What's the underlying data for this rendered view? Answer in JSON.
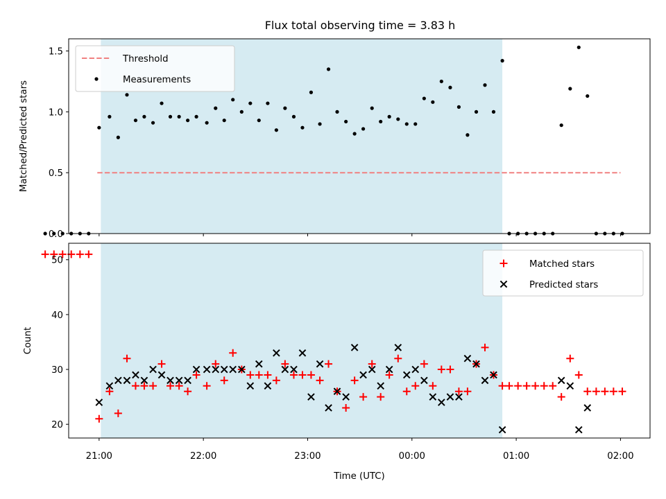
{
  "title": "Flux total observing time = 3.83 h",
  "colors": {
    "shade": "#add8e6",
    "threshold": "#f08080",
    "measurement": "#000000",
    "matched": "#ff0000",
    "predicted": "#000000"
  },
  "chart_data": [
    {
      "type": "scatter",
      "panel": "top",
      "ylabel": "Matched/Predicted stars",
      "xlabel": "",
      "ylim": [
        0,
        1.6
      ],
      "yticks": [
        0.0,
        0.5,
        1.0,
        1.5
      ],
      "ytick_labels": [
        "0.0",
        "0.5",
        "1.0",
        "1.5"
      ],
      "xlim_hours": [
        20.7083,
        26.2833
      ],
      "shaded_span_hours": [
        21.0167,
        24.8667
      ],
      "legend": {
        "position": "upper left",
        "entries": [
          "Threshold",
          "Measurements"
        ]
      },
      "threshold": {
        "name": "Threshold",
        "y": 0.5,
        "x_from": 20.983,
        "x_to": 26.0
      },
      "series": [
        {
          "name": "Measurements",
          "x": [
            20.483,
            20.567,
            20.65,
            20.733,
            20.817,
            20.9,
            21.0,
            21.1,
            21.183,
            21.267,
            21.35,
            21.433,
            21.517,
            21.6,
            21.683,
            21.767,
            21.85,
            21.933,
            22.033,
            22.117,
            22.2,
            22.283,
            22.367,
            22.45,
            22.533,
            22.617,
            22.7,
            22.783,
            22.867,
            22.95,
            23.033,
            23.117,
            23.2,
            23.283,
            23.367,
            23.45,
            23.533,
            23.617,
            23.7,
            23.783,
            23.867,
            23.95,
            24.033,
            24.117,
            24.2,
            24.283,
            24.367,
            24.45,
            24.533,
            24.617,
            24.7,
            24.783,
            24.867,
            24.933,
            25.017,
            25.1,
            25.183,
            25.267,
            25.35,
            25.433,
            25.517,
            25.6,
            25.683,
            25.767,
            25.85,
            25.933,
            26.017
          ],
          "y": [
            0,
            0,
            0,
            0,
            0,
            0,
            0.87,
            0.96,
            0.79,
            1.14,
            0.93,
            0.96,
            0.91,
            1.07,
            0.96,
            0.96,
            0.93,
            0.96,
            0.91,
            1.03,
            0.93,
            1.1,
            1.0,
            1.07,
            0.93,
            1.07,
            0.85,
            1.03,
            0.96,
            0.87,
            1.16,
            0.9,
            1.35,
            1.0,
            0.92,
            0.82,
            0.86,
            1.03,
            0.92,
            0.96,
            0.94,
            0.9,
            0.9,
            1.11,
            1.08,
            1.25,
            1.2,
            1.04,
            0.81,
            1.0,
            1.22,
            1.0,
            1.42,
            0,
            0,
            0,
            0,
            0,
            0,
            0.89,
            1.19,
            1.53,
            1.13,
            0,
            0,
            0,
            0
          ]
        }
      ]
    },
    {
      "type": "scatter",
      "panel": "bottom",
      "xlabel": "Time (UTC)",
      "ylabel": "Count",
      "ylim": [
        17.5,
        53
      ],
      "yticks": [
        20,
        30,
        40,
        50
      ],
      "ytick_labels": [
        "20",
        "30",
        "40",
        "50"
      ],
      "xticks_hours": [
        21,
        22,
        23,
        24,
        25,
        26
      ],
      "xtick_labels": [
        "21:00",
        "22:00",
        "23:00",
        "00:00",
        "01:00",
        "02:00"
      ],
      "xlim_hours": [
        20.7083,
        26.2833
      ],
      "shaded_span_hours": [
        21.0167,
        24.8667
      ],
      "legend": {
        "position": "upper right",
        "entries": [
          "Matched stars",
          "Predicted stars"
        ]
      },
      "series": [
        {
          "name": "Matched stars",
          "marker": "plus",
          "x": [
            20.483,
            20.567,
            20.65,
            20.733,
            20.817,
            20.9,
            21.0,
            21.1,
            21.183,
            21.267,
            21.35,
            21.433,
            21.517,
            21.6,
            21.683,
            21.767,
            21.85,
            21.933,
            22.033,
            22.117,
            22.2,
            22.283,
            22.367,
            22.45,
            22.533,
            22.617,
            22.7,
            22.783,
            22.867,
            22.95,
            23.033,
            23.117,
            23.2,
            23.283,
            23.367,
            23.45,
            23.533,
            23.617,
            23.7,
            23.783,
            23.867,
            23.95,
            24.033,
            24.117,
            24.2,
            24.283,
            24.367,
            24.45,
            24.533,
            24.617,
            24.7,
            24.783,
            24.867,
            24.933,
            25.017,
            25.1,
            25.183,
            25.267,
            25.35,
            25.433,
            25.517,
            25.6,
            25.683,
            25.767,
            25.85,
            25.933,
            26.017
          ],
          "y": [
            51,
            51,
            51,
            51,
            51,
            51,
            21,
            26,
            22,
            32,
            27,
            27,
            27,
            31,
            27,
            27,
            26,
            29,
            27,
            31,
            28,
            33,
            30,
            29,
            29,
            29,
            28,
            31,
            29,
            29,
            29,
            28,
            31,
            26,
            23,
            28,
            25,
            31,
            25,
            29,
            32,
            26,
            27,
            31,
            27,
            30,
            30,
            26,
            26,
            31,
            34,
            29,
            27,
            27,
            27,
            27,
            27,
            27,
            27,
            25,
            32,
            29,
            26,
            26,
            26,
            26,
            26
          ]
        },
        {
          "name": "Predicted stars",
          "marker": "x",
          "x": [
            21.0,
            21.1,
            21.183,
            21.267,
            21.35,
            21.433,
            21.517,
            21.6,
            21.683,
            21.767,
            21.85,
            21.933,
            22.033,
            22.117,
            22.2,
            22.283,
            22.367,
            22.45,
            22.533,
            22.617,
            22.7,
            22.783,
            22.867,
            22.95,
            23.033,
            23.117,
            23.2,
            23.283,
            23.367,
            23.45,
            23.533,
            23.617,
            23.7,
            23.783,
            23.867,
            23.95,
            24.033,
            24.117,
            24.2,
            24.283,
            24.367,
            24.45,
            24.533,
            24.617,
            24.7,
            24.783,
            24.867,
            25.433,
            25.517,
            25.6,
            25.683
          ],
          "y": [
            24,
            27,
            28,
            28,
            29,
            28,
            30,
            29,
            28,
            28,
            28,
            30,
            30,
            30,
            30,
            30,
            30,
            27,
            31,
            27,
            33,
            30,
            30,
            33,
            25,
            31,
            23,
            26,
            25,
            34,
            29,
            30,
            27,
            30,
            34,
            29,
            30,
            28,
            25,
            24,
            25,
            25,
            32,
            31,
            28,
            29,
            19,
            28,
            27,
            19,
            23
          ]
        }
      ]
    }
  ]
}
